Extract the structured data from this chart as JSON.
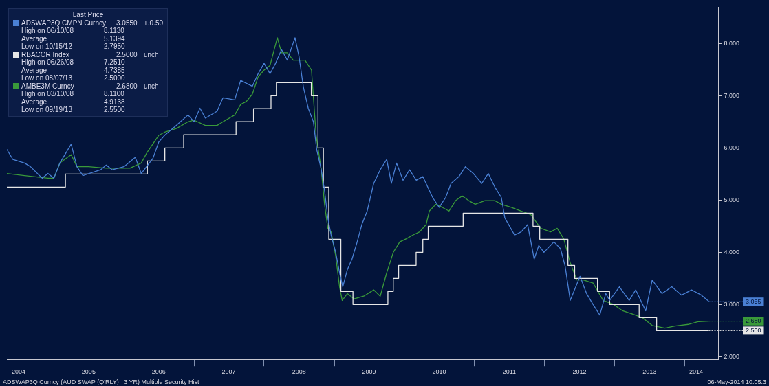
{
  "chart_data": {
    "type": "line",
    "legend_title": "Last Price",
    "legend": "top left",
    "grid": false,
    "marker": "none",
    "xlim": [
      "2004-05-01",
      "2014-06-25"
    ],
    "xticks": [
      {
        "value": "2004-07-01",
        "label": "2004"
      },
      {
        "value": "2005-01-01",
        "label": null
      },
      {
        "value": "2005-07-01",
        "label": "2005"
      },
      {
        "value": "2006-01-01",
        "label": null
      },
      {
        "value": "2006-07-01",
        "label": "2006"
      },
      {
        "value": "2007-01-01",
        "label": null
      },
      {
        "value": "2007-07-01",
        "label": "2007"
      },
      {
        "value": "2008-01-01",
        "label": null
      },
      {
        "value": "2008-07-01",
        "label": "2008"
      },
      {
        "value": "2009-01-01",
        "label": null
      },
      {
        "value": "2009-07-01",
        "label": "2009"
      },
      {
        "value": "2010-01-01",
        "label": null
      },
      {
        "value": "2010-07-01",
        "label": "2010"
      },
      {
        "value": "2011-01-01",
        "label": null
      },
      {
        "value": "2011-07-01",
        "label": "2011"
      },
      {
        "value": "2012-01-01",
        "label": null
      },
      {
        "value": "2012-07-01",
        "label": "2012"
      },
      {
        "value": "2013-01-01",
        "label": null
      },
      {
        "value": "2013-07-01",
        "label": "2013"
      },
      {
        "value": "2014-01-01",
        "label": null
      },
      {
        "value": "2014-03-01",
        "label": "2014"
      }
    ],
    "ylim": [
      1.95,
      8.7
    ],
    "yticks": [
      {
        "value": 2,
        "label": "2.000"
      },
      {
        "value": 3,
        "label": "3.000"
      },
      {
        "value": 4,
        "label": "4.000"
      },
      {
        "value": 5,
        "label": "5.000"
      },
      {
        "value": 6,
        "label": "6.000"
      },
      {
        "value": 7,
        "label": "7.000"
      },
      {
        "value": 8,
        "label": "8.000"
      }
    ],
    "series": [
      {
        "name": "ADSWAP3Q CMPN Curncy",
        "color": "#4a80d4",
        "x": [
          "2004-05",
          "2004-06",
          "2004-08",
          "2004-09",
          "2004-11",
          "2004-12",
          "2005-01",
          "2005-02",
          "2005-04",
          "2005-05",
          "2005-06",
          "2005-09",
          "2005-10",
          "2005-11",
          "2006-01",
          "2006-03",
          "2006-04",
          "2006-06",
          "2006-07",
          "2006-08",
          "2006-10",
          "2006-12",
          "2007-01",
          "2007-02",
          "2007-03",
          "2007-05",
          "2007-06",
          "2007-08",
          "2007-09",
          "2007-11",
          "2007-12",
          "2008-01",
          "2008-02",
          "2008-03",
          "2008-04",
          "2008-05",
          "2008-06-10",
          "2008-07",
          "2008-07-24",
          "2008-08-18",
          "2008-09-14",
          "2008-10-01",
          "2008-10-25",
          "2008-11-11",
          "2008-11-28",
          "2008-12-15",
          "2009-01-08",
          "2009-01-28",
          "2009-02-14",
          "2009-03-10",
          "2009-04-03",
          "2009-04-30",
          "2009-05-24",
          "2009-06-21",
          "2009-07-25",
          "2009-08-28",
          "2009-10-01",
          "2009-10-25",
          "2009-11-21",
          "2009-12-25",
          "2010-01-28",
          "2010-03-04",
          "2010-04-07",
          "2010-05-28",
          "2010-07-01",
          "2010-08-04",
          "2010-09-01",
          "2010-10-12",
          "2010-11-15",
          "2010-12-26",
          "2011-02-08",
          "2011-03-14",
          "2011-04-17",
          "2011-05-21",
          "2011-06-08",
          "2011-07-29",
          "2011-09-01",
          "2011-10-05",
          "2011-11-08",
          "2011-12-02",
          "2011-12-29",
          "2012-02-19",
          "2012-03-24",
          "2012-04-17",
          "2012-05-14",
          "2012-07-04",
          "2012-08-07",
          "2012-09-10",
          "2012-10-15",
          "2012-11-15",
          "2012-12-05",
          "2013-01-25",
          "2013-03-17",
          "2013-04-20",
          "2013-06-11",
          "2013-07-15",
          "2013-09-04",
          "2013-10-25",
          "2013-12-15",
          "2014-02-05",
          "2014-03-28",
          "2014-05-06"
        ],
        "values": [
          5.97,
          5.78,
          5.71,
          5.64,
          5.42,
          5.51,
          5.42,
          5.71,
          6.07,
          5.64,
          5.47,
          5.58,
          5.67,
          5.58,
          5.64,
          5.82,
          5.51,
          5.8,
          6.11,
          6.24,
          6.43,
          6.63,
          6.5,
          6.76,
          6.57,
          6.7,
          6.96,
          6.92,
          7.29,
          7.18,
          7.42,
          7.62,
          7.42,
          7.62,
          7.88,
          7.68,
          8.11,
          7.75,
          7.16,
          6.76,
          6.5,
          5.97,
          5.58,
          5.18,
          4.66,
          4.33,
          4.0,
          3.61,
          3.34,
          3.67,
          3.87,
          4.2,
          4.53,
          4.79,
          5.32,
          5.58,
          5.78,
          5.32,
          5.71,
          5.38,
          5.58,
          5.38,
          5.45,
          5.05,
          4.86,
          5.05,
          5.32,
          5.45,
          5.64,
          5.51,
          5.32,
          5.51,
          5.25,
          5.05,
          4.66,
          4.33,
          4.39,
          4.53,
          3.87,
          4.13,
          4.0,
          4.2,
          4.07,
          3.74,
          3.08,
          3.54,
          3.21,
          3.0,
          2.8,
          3.21,
          3.08,
          3.34,
          3.08,
          3.28,
          2.88,
          3.47,
          3.21,
          3.34,
          3.18,
          3.28,
          3.18,
          3.06
        ]
      },
      {
        "name": "RBACOR Index",
        "color": "#e6e6e6",
        "type": "step",
        "x": [
          "2004-05",
          "2005-03-02",
          "2006-05-03",
          "2006-08-02",
          "2006-11-08",
          "2007-08-08",
          "2007-11-07",
          "2008-02-06",
          "2008-03-05",
          "2008-09-03",
          "2008-10-08",
          "2008-11-05",
          "2008-12-03",
          "2009-02-04",
          "2009-04-08",
          "2009-10-07",
          "2009-11-04",
          "2009-12-02",
          "2010-03-03",
          "2010-04-07",
          "2010-05-05",
          "2010-11-03",
          "2011-11-02",
          "2011-12-07",
          "2012-05-02",
          "2012-06-06",
          "2012-10-03",
          "2012-12-05",
          "2013-05-08",
          "2013-08-07",
          "2014-05-06"
        ],
        "values": [
          5.25,
          5.5,
          5.75,
          6.0,
          6.25,
          6.5,
          6.75,
          7.0,
          7.25,
          7.0,
          6.0,
          5.25,
          4.25,
          3.25,
          3.0,
          3.25,
          3.5,
          3.75,
          4.0,
          4.25,
          4.5,
          4.75,
          4.5,
          4.25,
          3.75,
          3.5,
          3.25,
          3.0,
          2.75,
          2.5,
          2.5
        ]
      },
      {
        "name": "AMBE3M Curncy",
        "color": "#3a9a3a",
        "x": [
          "2004-05",
          "2004-08",
          "2004-12",
          "2005-01",
          "2005-02",
          "2005-04",
          "2005-05",
          "2005-07",
          "2005-10",
          "2005-12",
          "2006-02",
          "2006-04",
          "2006-05",
          "2006-07",
          "2006-08",
          "2006-10",
          "2006-12",
          "2007-01",
          "2007-03",
          "2007-05",
          "2007-06",
          "2007-08",
          "2007-09",
          "2007-10",
          "2007-11",
          "2007-12",
          "2008-01",
          "2008-02",
          "2008-03-10",
          "2008-04",
          "2008-05",
          "2008-06",
          "2008-08-01",
          "2008-09-04",
          "2008-09-28",
          "2008-10-25",
          "2008-11-11",
          "2008-11-28",
          "2008-12-15",
          "2009-01-08",
          "2009-01-28",
          "2009-02-11",
          "2009-03-10",
          "2009-04-13",
          "2009-06-03",
          "2009-07-25",
          "2009-08-28",
          "2009-10-01",
          "2009-11-04",
          "2009-12-08",
          "2010-01-11",
          "2010-02-14",
          "2010-03-21",
          "2010-04-24",
          "2010-05-11",
          "2010-06-14",
          "2010-07-18",
          "2010-08-21",
          "2010-09-25",
          "2010-10-29",
          "2010-12-02",
          "2011-01-05",
          "2011-02-25",
          "2011-04-17",
          "2011-05-21",
          "2011-07-12",
          "2011-09-01",
          "2011-10-22",
          "2011-12-12",
          "2012-02-02",
          "2012-03-07",
          "2012-04-10",
          "2012-05-14",
          "2012-06-17",
          "2012-07-21",
          "2012-09-10",
          "2012-11-01",
          "2012-12-22",
          "2013-02-11",
          "2013-04-03",
          "2013-05-24",
          "2013-07-15",
          "2013-09-19",
          "2013-11-11",
          "2014-01-18",
          "2014-03-11",
          "2014-05-06"
        ],
        "values": [
          5.51,
          5.47,
          5.42,
          5.42,
          5.71,
          5.87,
          5.64,
          5.64,
          5.61,
          5.61,
          5.61,
          5.71,
          5.91,
          6.24,
          6.3,
          6.37,
          6.5,
          6.53,
          6.43,
          6.43,
          6.5,
          6.63,
          6.83,
          6.89,
          7.03,
          7.36,
          7.49,
          7.58,
          8.11,
          7.82,
          7.82,
          7.68,
          7.68,
          7.49,
          6.24,
          5.58,
          4.92,
          4.46,
          4.39,
          3.93,
          3.34,
          3.08,
          3.21,
          3.11,
          3.16,
          3.28,
          3.16,
          3.61,
          4.0,
          4.2,
          4.26,
          4.33,
          4.39,
          4.53,
          4.79,
          4.92,
          4.86,
          4.79,
          4.99,
          5.08,
          4.99,
          4.92,
          4.99,
          4.99,
          4.92,
          4.86,
          4.79,
          4.72,
          4.46,
          4.39,
          4.46,
          4.26,
          3.8,
          3.47,
          3.47,
          3.41,
          3.08,
          3.01,
          2.88,
          2.82,
          2.75,
          2.6,
          2.55,
          2.59,
          2.62,
          2.67,
          2.68
        ]
      }
    ],
    "annotations": [
      "3.0550",
      "+.0.50",
      "High on 06/10/08",
      "8.1130",
      "Average",
      "5.1394",
      "Low on 10/15/12",
      "2.7950",
      "2.5000",
      "unch",
      "High on 06/26/08",
      "7.2510",
      "Average",
      "4.7385",
      "Low on 08/07/13",
      "2.5000",
      "2.6800",
      "unch",
      "High on 03/10/08",
      "8.1100",
      "Average",
      "4.9138",
      "Low on 09/19/13",
      "2.5500",
      "ADSWAP3Q Curncy (AUD SWAP (Q'RLY)   3 YR) Multiple Security Hist",
      "06-May-2014 10:05:3",
      {
        "text": "3.055",
        "x": "2014-05-06",
        "y": 3.055
      },
      {
        "text": "2.500",
        "x": "2014-05-06",
        "y": 2.5
      },
      {
        "text": "2.680",
        "x": "2014-05-06",
        "y": 2.68
      }
    ]
  }
}
